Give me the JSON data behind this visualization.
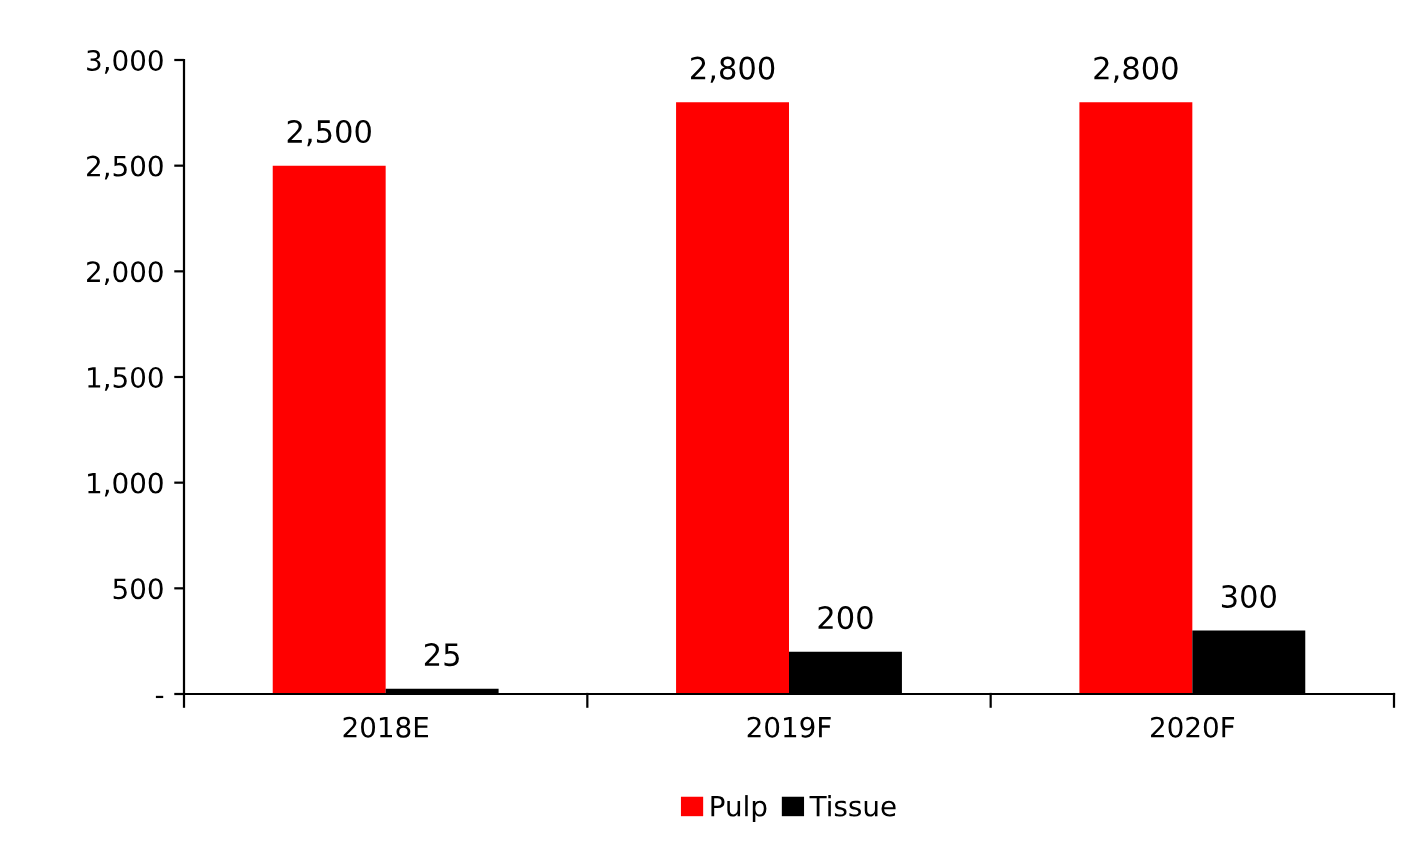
{
  "chart_data": {
    "type": "bar",
    "categories": [
      "2018E",
      "2019F",
      "2020F"
    ],
    "series": [
      {
        "name": "Pulp",
        "color": "#ff0000",
        "values": [
          2500,
          2800,
          2800
        ],
        "value_labels": [
          "2,500",
          "2,800",
          "2,800"
        ]
      },
      {
        "name": "Tissue",
        "color": "#000000",
        "values": [
          25,
          200,
          300
        ],
        "value_labels": [
          "25",
          "200",
          "300"
        ]
      }
    ],
    "ylim": [
      0,
      3000
    ],
    "yticks": [
      {
        "value": 0,
        "label": "-"
      },
      {
        "value": 500,
        "label": "500"
      },
      {
        "value": 1000,
        "label": "1,000"
      },
      {
        "value": 1500,
        "label": "1,500"
      },
      {
        "value": 2000,
        "label": "2,000"
      },
      {
        "value": 2500,
        "label": "2,500"
      },
      {
        "value": 3000,
        "label": "3,000"
      }
    ],
    "grid": false,
    "legend": "bottom"
  }
}
